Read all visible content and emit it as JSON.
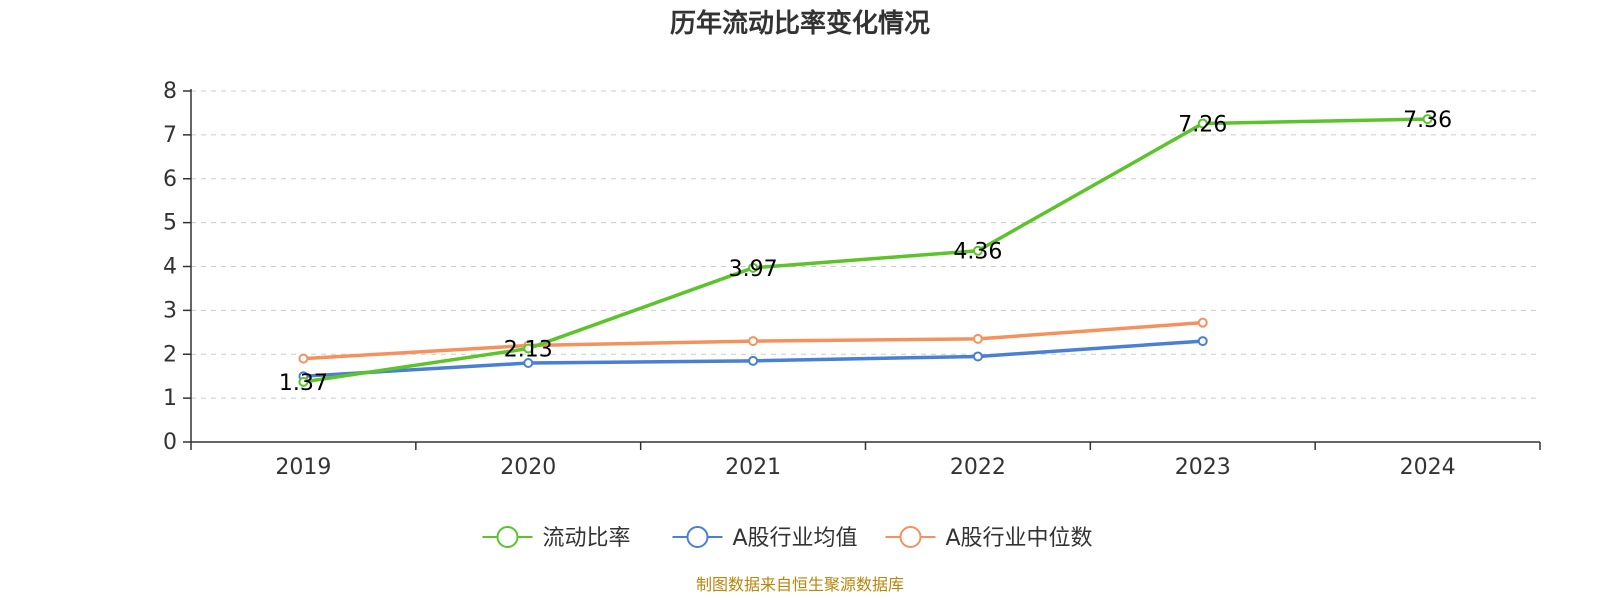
{
  "chart_data": {
    "type": "line",
    "title": "历年流动比率变化情况",
    "categories": [
      "2019",
      "2020",
      "2021",
      "2022",
      "2023",
      "2024"
    ],
    "ylim": [
      0,
      8
    ],
    "yticks": [
      "0",
      "1",
      "2",
      "3",
      "4",
      "5",
      "6",
      "7",
      "8"
    ],
    "grid": true,
    "legend_position": "bottom-center",
    "series": [
      {
        "name": "流动比率",
        "color": "#5cc42b",
        "values": [
          1.37,
          2.13,
          3.97,
          4.36,
          7.26,
          7.36
        ],
        "labels": [
          "1.37",
          "2.13",
          "3.97",
          "4.36",
          "7.26",
          "7.36"
        ]
      },
      {
        "name": "A股行业均值",
        "color": "#4a7fd6",
        "values": [
          1.5,
          1.8,
          1.85,
          1.95,
          2.3,
          null
        ]
      },
      {
        "name": "A股行业中位数",
        "color": "#f5915c",
        "values": [
          1.9,
          2.2,
          2.3,
          2.35,
          2.72,
          null
        ]
      }
    ]
  },
  "source": {
    "text": "制图数据来自恒生聚源数据库",
    "color": "#b8860b"
  }
}
